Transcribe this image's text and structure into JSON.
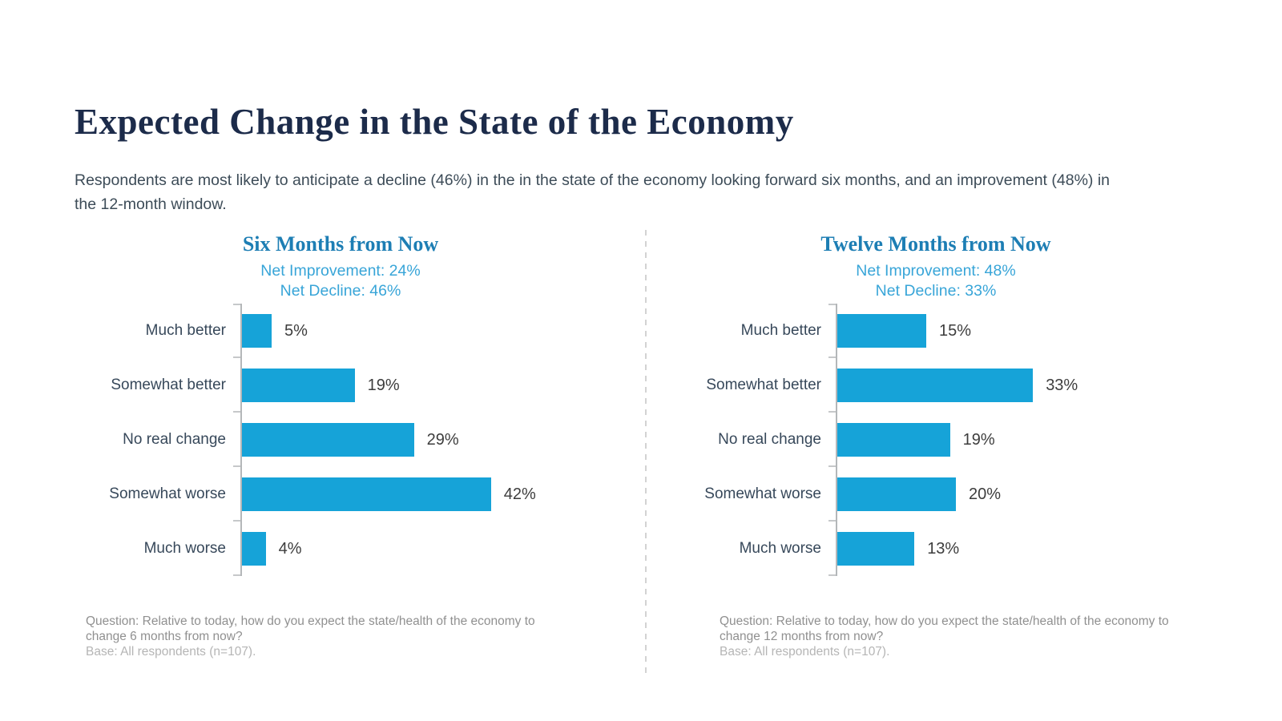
{
  "page": {
    "title": "Expected Change in the State of the Economy",
    "subtitle": "Respondents are most likely to anticipate a decline (46%) in the in the state of the economy looking forward six months, and an improvement (48%) in the 12-month window."
  },
  "colors": {
    "title_navy": "#1c2b4a",
    "body_text": "#3d4c58",
    "chart_title_blue": "#1d7eb4",
    "net_blue": "#38a5d8",
    "bar_fill": "#16a3d8",
    "value_text": "#3d3d3d",
    "label_slate": "#37485a",
    "axis_gray": "#b4b7b9",
    "tick_gray": "#c6c8ca",
    "divider_gray": "#d3d3d3",
    "question_gray": "#909090",
    "base_gray": "#b5b5b5"
  },
  "chart_data": [
    {
      "type": "bar",
      "orientation": "horizontal",
      "title": "Six Months from Now",
      "net_improvement_label": "Net Improvement: 24%",
      "net_decline_label": "Net Decline: 46%",
      "categories": [
        "Much better",
        "Somewhat better",
        "No real change",
        "Somewhat worse",
        "Much worse"
      ],
      "values": [
        5,
        19,
        29,
        42,
        4
      ],
      "value_labels": [
        "5%",
        "19%",
        "29%",
        "42%",
        "4%"
      ],
      "xlim": [
        0,
        45
      ],
      "grid": false,
      "legend": "none",
      "footnote": {
        "question": "Question: Relative to today, how do you expect the state/health of the economy to change 6 months from now?",
        "base": "Base: All respondents (n=107)."
      }
    },
    {
      "type": "bar",
      "orientation": "horizontal",
      "title": "Twelve Months from Now",
      "net_improvement_label": "Net Improvement: 48%",
      "net_decline_label": "Net Decline: 33%",
      "categories": [
        "Much better",
        "Somewhat better",
        "No real change",
        "Somewhat worse",
        "Much worse"
      ],
      "values": [
        15,
        33,
        19,
        20,
        13
      ],
      "value_labels": [
        "15%",
        "33%",
        "19%",
        "20%",
        "13%"
      ],
      "xlim": [
        0,
        45
      ],
      "grid": false,
      "legend": "none",
      "footnote": {
        "question": "Question: Relative to today, how do you expect the state/health of the economy to change 12 months from now?",
        "base": "Base: All respondents (n=107)."
      }
    }
  ]
}
